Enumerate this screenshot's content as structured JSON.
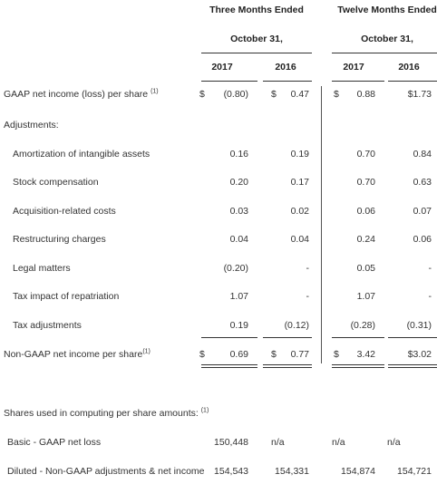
{
  "header": {
    "three_months": "Three Months Ended",
    "twelve_months": "Twelve Months Ended",
    "period_end_left": "October 31,",
    "period_end_right": "October 31,",
    "years": [
      "2017",
      "2016",
      "2017",
      "2016"
    ]
  },
  "gaap_row": {
    "label": "GAAP net income (loss) per share",
    "footnote": "(1)",
    "cells": [
      {
        "sym": "$",
        "val": "(0.80)"
      },
      {
        "sym": "$",
        "val": "0.47"
      },
      {
        "sym": "$",
        "val": "0.88"
      },
      {
        "sym": "",
        "val": "$1.73"
      }
    ]
  },
  "adjustments_label": "Adjustments:",
  "adjustments": [
    {
      "label": "Amortization of intangible assets",
      "values": [
        "0.16",
        "0.19",
        "0.70",
        "0.84"
      ]
    },
    {
      "label": "Stock compensation",
      "values": [
        "0.20",
        "0.17",
        "0.70",
        "0.63"
      ]
    },
    {
      "label": "Acquisition-related costs",
      "values": [
        "0.03",
        "0.02",
        "0.06",
        "0.07"
      ]
    },
    {
      "label": "Restructuring charges",
      "values": [
        "0.04",
        "0.04",
        "0.24",
        "0.06"
      ]
    },
    {
      "label": "Legal matters",
      "values": [
        "(0.20)",
        "-",
        "0.05",
        "-"
      ]
    },
    {
      "label": "Tax impact of repatriation",
      "values": [
        "1.07",
        "-",
        "1.07",
        "-"
      ]
    },
    {
      "label": "Tax adjustments",
      "values": [
        "0.19",
        "(0.12)",
        "(0.28)",
        "(0.31)"
      ]
    }
  ],
  "non_gaap_row": {
    "label": "Non-GAAP net income per share",
    "footnote": "(1)",
    "cells": [
      {
        "sym": "$",
        "val": "0.69"
      },
      {
        "sym": "$",
        "val": "0.77"
      },
      {
        "sym": "$",
        "val": "3.42"
      },
      {
        "sym": "",
        "val": "$3.02"
      }
    ]
  },
  "shares": {
    "label": "Shares used in computing per share amounts:",
    "footnote": "(1)",
    "rows": [
      {
        "label": "Basic - GAAP net loss",
        "values": [
          "150,448",
          "n/a",
          "n/a",
          "n/a"
        ]
      },
      {
        "label": "Diluted - Non-GAAP adjustments & net income",
        "values": [
          "154,543",
          "154,331",
          "154,874",
          "154,721"
        ]
      }
    ]
  }
}
